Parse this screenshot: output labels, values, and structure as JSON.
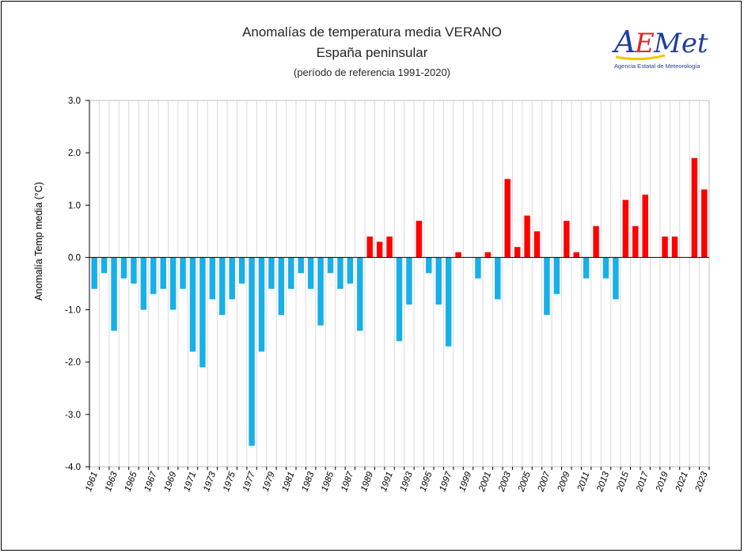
{
  "chart_data": {
    "type": "bar",
    "title": "Anomalías de temperatura media VERANO",
    "subtitle": "España peninsular",
    "note": "(período de referencia 1991-2020)",
    "xlabel": "",
    "ylabel": "Anomalía Temp media (°C)",
    "ylim": [
      -4.0,
      3.0
    ],
    "yticks": [
      "3.0",
      "2.0",
      "1.0",
      "0.0",
      "-1.0",
      "-2.0",
      "-3.0",
      "-4.0"
    ],
    "ytick_values": [
      3,
      2,
      1,
      0,
      -1,
      -2,
      -3,
      -4
    ],
    "grid": "vertical",
    "legend": "none",
    "categories": [
      1961,
      1962,
      1963,
      1964,
      1965,
      1966,
      1967,
      1968,
      1969,
      1970,
      1971,
      1972,
      1973,
      1974,
      1975,
      1976,
      1977,
      1978,
      1979,
      1980,
      1981,
      1982,
      1983,
      1984,
      1985,
      1986,
      1987,
      1988,
      1989,
      1990,
      1991,
      1992,
      1993,
      1994,
      1995,
      1996,
      1997,
      1998,
      1999,
      2000,
      2001,
      2002,
      2003,
      2004,
      2005,
      2006,
      2007,
      2008,
      2009,
      2010,
      2011,
      2012,
      2013,
      2014,
      2015,
      2016,
      2017,
      2018,
      2019,
      2020,
      2021,
      2022,
      2023
    ],
    "xtick_labels": [
      "1961",
      "1963",
      "1965",
      "1967",
      "1969",
      "1971",
      "1973",
      "1975",
      "1977",
      "1979",
      "1981",
      "1983",
      "1985",
      "1987",
      "1989",
      "1991",
      "1993",
      "1995",
      "1997",
      "1999",
      "2001",
      "2003",
      "2005",
      "2007",
      "2009",
      "2011",
      "2013",
      "2015",
      "2017",
      "2019",
      "2021",
      "2023"
    ],
    "values": [
      -0.6,
      -0.3,
      -1.4,
      -0.4,
      -0.5,
      -1.0,
      -0.7,
      -0.6,
      -1.0,
      -0.6,
      -1.8,
      -2.1,
      -0.8,
      -1.1,
      -0.8,
      -0.5,
      -3.6,
      -1.8,
      -0.6,
      -1.1,
      -0.6,
      -0.3,
      -0.6,
      -1.3,
      -0.3,
      -0.6,
      -0.5,
      -1.4,
      0.4,
      0.3,
      0.4,
      -1.6,
      -0.9,
      0.7,
      -0.3,
      -0.9,
      -1.7,
      0.1,
      0.0,
      -0.4,
      0.1,
      -0.8,
      1.5,
      0.2,
      0.8,
      0.5,
      -1.1,
      -0.7,
      0.7,
      0.1,
      -0.4,
      0.6,
      -0.4,
      -0.8,
      1.1,
      0.6,
      1.2,
      0.0,
      0.4,
      0.4,
      0.0,
      1.9,
      1.3
    ],
    "colors": {
      "positive": "#ff0000",
      "negative": "#17b0e8"
    }
  },
  "logo": {
    "text": "AEMet",
    "caption": "Agencia Estatal de Meteorología",
    "colors": {
      "blue": "#1f3f9c",
      "red": "#e0262b",
      "yellow": "#f3c500"
    }
  }
}
